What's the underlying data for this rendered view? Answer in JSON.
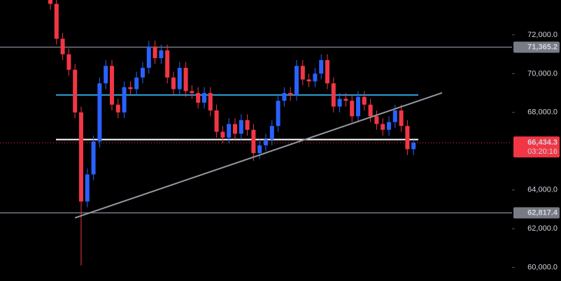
{
  "chart_data": {
    "type": "candlestick",
    "categories": [
      null,
      null,
      null,
      null,
      null,
      null,
      null,
      null,
      null,
      null,
      null,
      null,
      null,
      null,
      null,
      null,
      null,
      null,
      null,
      null,
      null,
      null,
      null,
      null,
      null,
      null,
      null,
      null,
      null,
      null,
      null,
      null,
      null,
      null,
      null,
      null,
      null,
      null,
      null,
      null,
      null,
      null,
      null,
      null,
      null,
      null,
      null,
      null,
      null,
      null,
      null,
      null,
      null,
      null,
      null,
      null,
      null,
      null,
      null,
      null
    ],
    "open": [
      73900,
      73600,
      71800,
      71000,
      70200,
      68000,
      63400,
      64800,
      66500,
      69500,
      70400,
      68400,
      68000,
      69300,
      69200,
      69800,
      70300,
      71400,
      70800,
      71200,
      69800,
      69200,
      70300,
      69100,
      69000,
      68500,
      69000,
      68100,
      67000,
      66700,
      67400,
      66900,
      67600,
      67100,
      65900,
      66300,
      66600,
      67300,
      68600,
      69000,
      68900,
      70400,
      69700,
      69600,
      70000,
      70700,
      69500,
      68300,
      68700,
      68600,
      67800,
      68800,
      68400,
      67800,
      67400,
      67100,
      67500,
      68100,
      67300,
      66100
    ],
    "high": [
      74200,
      73900,
      72100,
      71300,
      70500,
      68300,
      65100,
      66800,
      69800,
      70700,
      70700,
      68700,
      69600,
      69600,
      70100,
      70600,
      71700,
      71700,
      71500,
      71500,
      70100,
      70600,
      70600,
      69400,
      69300,
      69300,
      69300,
      68400,
      67300,
      67700,
      67700,
      67900,
      67900,
      67400,
      66600,
      66900,
      67600,
      68900,
      69300,
      69300,
      70700,
      70700,
      70000,
      70300,
      71000,
      71000,
      69800,
      69000,
      69000,
      68900,
      69100,
      69100,
      68700,
      68100,
      67700,
      67800,
      68400,
      68400,
      67600,
      66600
    ],
    "low": [
      73300,
      71500,
      70700,
      69900,
      67700,
      60100,
      63100,
      64500,
      66200,
      69200,
      68100,
      67700,
      67700,
      68900,
      68900,
      69500,
      70000,
      70500,
      70500,
      69500,
      68900,
      68900,
      68800,
      68700,
      68200,
      68200,
      67800,
      66700,
      66400,
      66400,
      66600,
      66600,
      66800,
      65500,
      65600,
      66000,
      66300,
      67000,
      68300,
      68600,
      68600,
      69400,
      69300,
      69300,
      69700,
      69200,
      68000,
      68000,
      68300,
      67500,
      67500,
      68100,
      67500,
      67100,
      66800,
      66800,
      67200,
      67000,
      65800,
      65800
    ],
    "close": [
      73600,
      71800,
      71000,
      70200,
      68000,
      63400,
      64800,
      66500,
      69500,
      70400,
      68400,
      68000,
      69300,
      69200,
      69800,
      70300,
      71400,
      70800,
      71200,
      69800,
      69200,
      70300,
      69100,
      69000,
      68500,
      69000,
      68100,
      67000,
      66700,
      67400,
      66900,
      67600,
      67100,
      65900,
      66300,
      66600,
      67300,
      68600,
      69000,
      68900,
      70400,
      69700,
      69600,
      70000,
      70700,
      69500,
      68300,
      68700,
      68600,
      67800,
      68800,
      68400,
      67800,
      67400,
      67100,
      67500,
      68100,
      67300,
      66100,
      66434.3
    ],
    "up_color": "#2962ff",
    "down_color": "#f23645",
    "ylim": [
      59300,
      73800
    ],
    "yticks": [
      {
        "value": 60000,
        "label": "60,000.0"
      },
      {
        "value": 62000,
        "label": "62,000.0"
      },
      {
        "value": 64000,
        "label": "64,000.0"
      },
      {
        "value": 68000,
        "label": "68,000.0"
      },
      {
        "value": 70000,
        "label": "70,000.0"
      },
      {
        "value": 72000,
        "label": "72,000.0"
      }
    ],
    "levels": [
      {
        "value": 71365.2,
        "label": "71,365.2",
        "color": "#787b86"
      },
      {
        "value": 62817.4,
        "label": "62,817.4",
        "color": "#787b86"
      }
    ],
    "zones": [
      {
        "value": 68900,
        "color": "#2ea3d6"
      },
      {
        "value": 66600,
        "color": "#ffffff"
      }
    ],
    "trendline": {
      "values": [
        62559,
        69009
      ],
      "color": "#9598a1"
    },
    "last_price": {
      "value": 66434.3,
      "label": "66,434.3",
      "countdown": "03:20:16",
      "color": "#f23645"
    }
  }
}
